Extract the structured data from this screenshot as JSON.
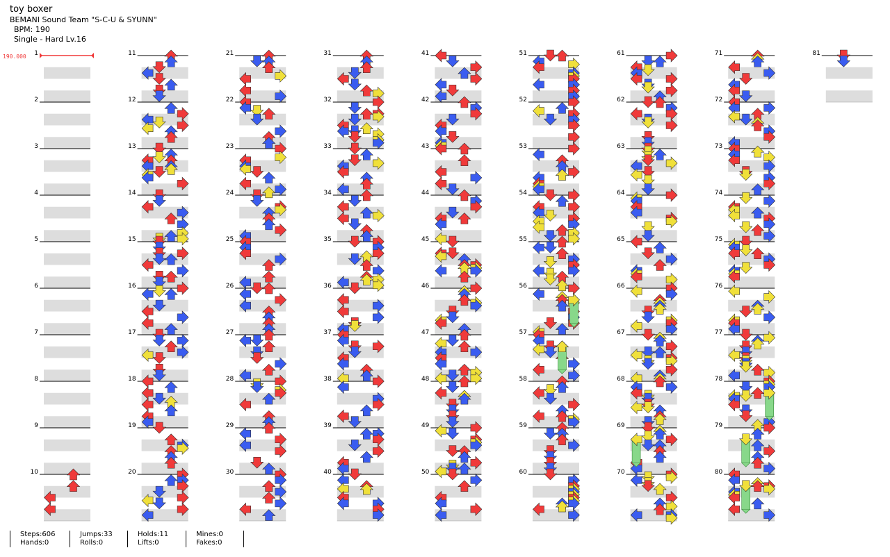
{
  "song": {
    "title": "toy boxer",
    "artist": "BEMANI Sound Team \"S-C-U & SYUNN\"",
    "bpm_label": "BPM: 190",
    "difficulty": "Single - Hard  Lv.16"
  },
  "bpm_marker": "190.000",
  "measure_count": 81,
  "columns": 9,
  "measures_per_column": 10,
  "stats": {
    "steps": "Steps:606",
    "jumps": "Jumps:33",
    "holds": "Holds:11",
    "mines": "Mines:0",
    "hands": "Hands:0",
    "rolls": "Rolls:0",
    "lifts": "Lifts:0",
    "fakes": "Fakes:0"
  },
  "colors": {
    "quarter": "#f03a3a",
    "eighth": "#3a5cf0",
    "sixteenth": "#f0e03a",
    "hold": "#88d88a",
    "band": "#dddddd"
  },
  "icons": [
    "arrow-left-icon",
    "arrow-down-icon",
    "arrow-up-icon",
    "arrow-right-icon",
    "hold-freeze-icon"
  ]
}
